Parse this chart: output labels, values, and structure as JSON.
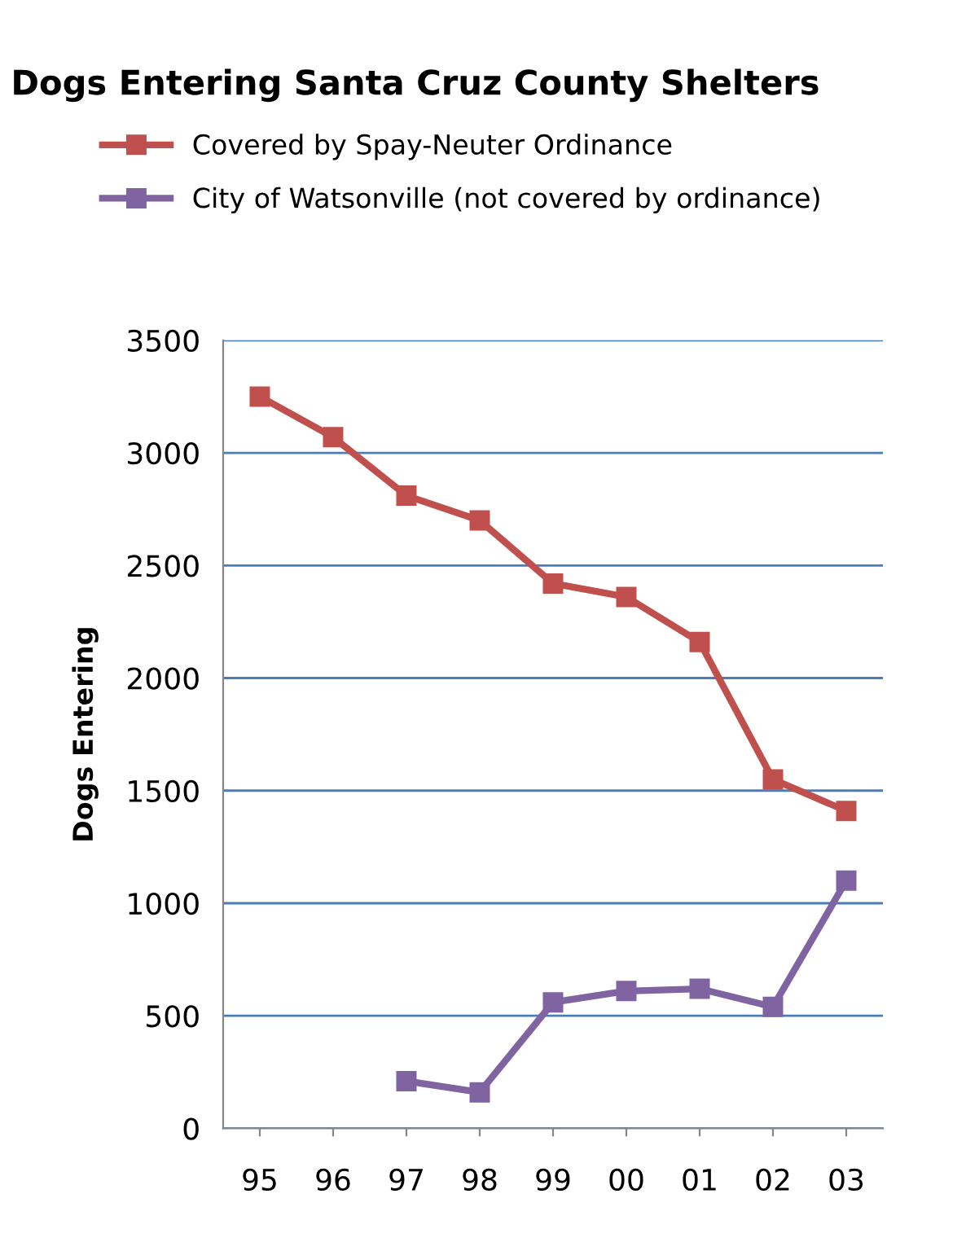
{
  "chart_data": {
    "type": "line",
    "title": "Dogs Entering Santa Cruz County Shelters",
    "ylabel": "Dogs Entering",
    "categories": [
      "95",
      "96",
      "97",
      "98",
      "99",
      "00",
      "01",
      "02",
      "03"
    ],
    "series": [
      {
        "name": "Covered by Spay-Neuter Ordinance",
        "color": "#c0504d",
        "values": [
          3250,
          3070,
          2810,
          2700,
          2420,
          2360,
          2160,
          1550,
          1410
        ]
      },
      {
        "name": "City of Watsonville (not covered by ordinance)",
        "color": "#8064a2",
        "values": [
          null,
          null,
          210,
          160,
          560,
          610,
          620,
          540,
          1100
        ]
      }
    ],
    "ylim": [
      0,
      3500
    ],
    "yticks": [
      0,
      500,
      1000,
      1500,
      2000,
      2500,
      3000,
      3500
    ],
    "grid": "y",
    "legend": "top",
    "marker": "square",
    "line_style": "solid"
  }
}
